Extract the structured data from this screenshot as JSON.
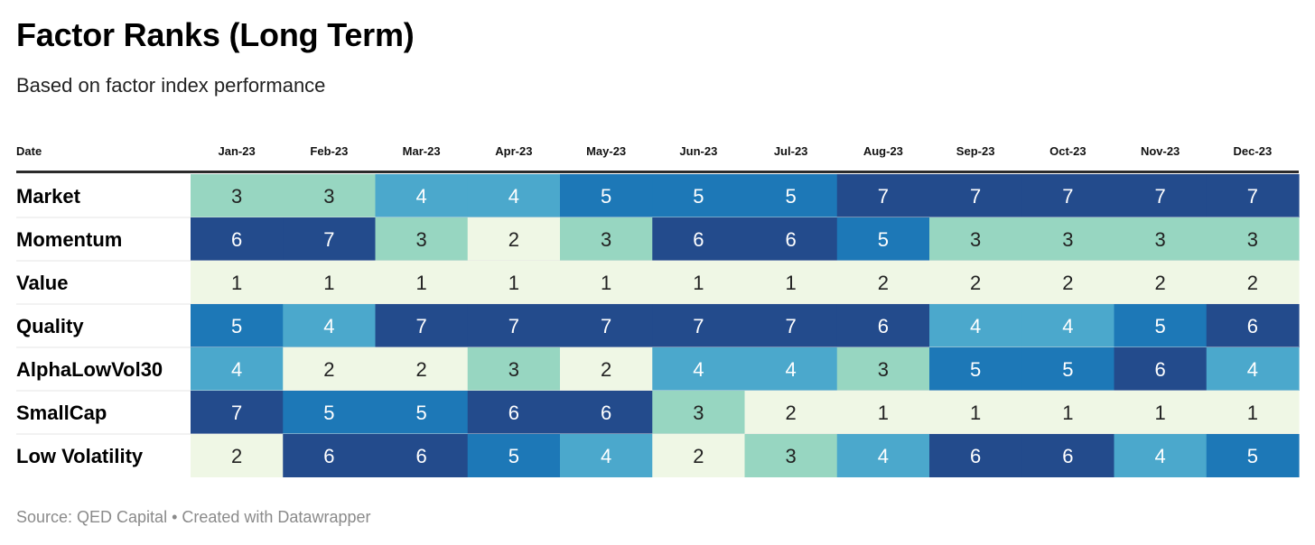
{
  "title": "Factor Ranks (Long Term)",
  "subtitle": "Based on factor index performance",
  "footer": "Source: QED Capital • Created with Datawrapper",
  "colors": {
    "1": "#eff7e5",
    "2": "#eff7e5",
    "3": "#97d6c1",
    "4": "#4ba8cc",
    "5": "#1d78b7",
    "6": "#234b8c",
    "7": "#234b8c"
  },
  "chart_data": {
    "type": "heatmap",
    "row_header": "Date",
    "columns": [
      "Jan-23",
      "Feb-23",
      "Mar-23",
      "Apr-23",
      "May-23",
      "Jun-23",
      "Jul-23",
      "Aug-23",
      "Sep-23",
      "Oct-23",
      "Nov-23",
      "Dec-23"
    ],
    "rows": [
      {
        "name": "Market",
        "values": [
          3,
          3,
          4,
          4,
          5,
          5,
          5,
          7,
          7,
          7,
          7,
          7
        ]
      },
      {
        "name": "Momentum",
        "values": [
          6,
          7,
          3,
          2,
          3,
          6,
          6,
          5,
          3,
          3,
          3,
          3
        ]
      },
      {
        "name": "Value",
        "values": [
          1,
          1,
          1,
          1,
          1,
          1,
          1,
          2,
          2,
          2,
          2,
          2
        ]
      },
      {
        "name": "Quality",
        "values": [
          5,
          4,
          7,
          7,
          7,
          7,
          7,
          6,
          4,
          4,
          5,
          6
        ]
      },
      {
        "name": "AlphaLowVol30",
        "values": [
          4,
          2,
          2,
          3,
          2,
          4,
          4,
          3,
          5,
          5,
          6,
          4
        ]
      },
      {
        "name": "SmallCap",
        "values": [
          7,
          5,
          5,
          6,
          6,
          3,
          2,
          1,
          1,
          1,
          1,
          1
        ]
      },
      {
        "name": "Low Volatility",
        "values": [
          2,
          6,
          6,
          5,
          4,
          2,
          3,
          4,
          6,
          6,
          4,
          5
        ]
      }
    ]
  }
}
